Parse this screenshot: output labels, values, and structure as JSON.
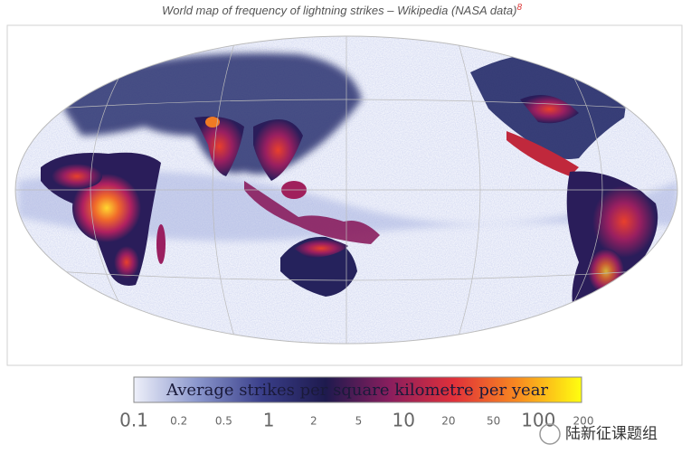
{
  "caption": {
    "text": "World map of frequency of lightning strikes – Wikipedia (NASA data)",
    "ref": "8"
  },
  "legend": {
    "title": "Average strikes per square kilometre per year",
    "ticks": [
      0.1,
      0.2,
      0.5,
      1,
      2,
      5,
      10,
      20,
      50,
      100,
      200
    ],
    "colors": [
      "#eef0fa",
      "#8a96cc",
      "#3a3f8a",
      "#1e1a4e",
      "#8a1e5e",
      "#e0303a",
      "#f88a20",
      "#ffff10"
    ]
  },
  "watermark": "陆新征课题组"
}
